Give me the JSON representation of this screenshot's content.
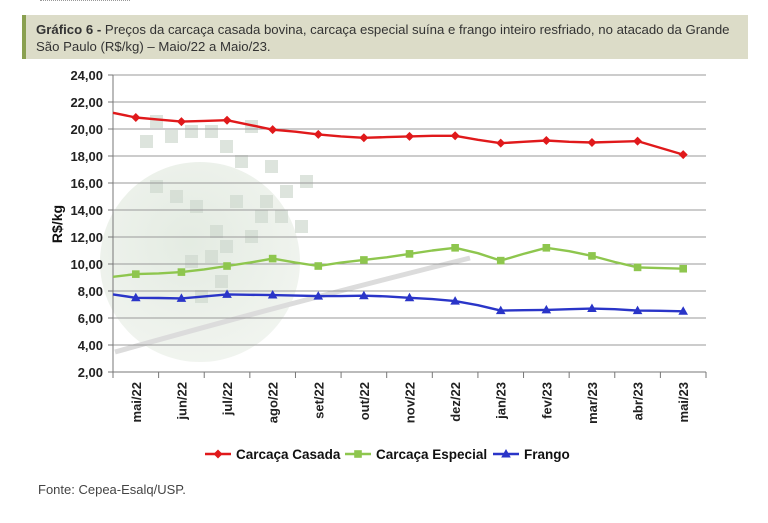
{
  "header": {
    "label": "Gráfico 6 -",
    "text": "Preços da carcaça casada bovina, carcaça especial suína e frango inteiro resfriado, no atacado da Grande São Paulo (R$/kg) – Maio/22 a Maio/23."
  },
  "source": "Fonte: Cepea-Esalq/USP.",
  "chart_data": {
    "type": "line",
    "ylabel": "R$/kg",
    "ylim": [
      2,
      24
    ],
    "y_ticks": [
      "2,00",
      "4,00",
      "6,00",
      "8,00",
      "10,00",
      "12,00",
      "14,00",
      "16,00",
      "18,00",
      "20,00",
      "22,00",
      "24,00"
    ],
    "categories": [
      "mai/22",
      "jun/22",
      "jul/22",
      "ago/22",
      "set/22",
      "out/22",
      "nov/22",
      "dez/22",
      "jan/23",
      "fev/23",
      "mar/23",
      "abr/23",
      "mai/23"
    ],
    "grid": true,
    "legend_position": "bottom",
    "series": [
      {
        "name": "Carcaça Casada",
        "color": "#e0191b",
        "marker": "diamond",
        "x": [
          -0.5,
          0,
          0.5,
          1,
          1.5,
          2,
          2.5,
          3,
          3.5,
          4,
          4.5,
          5,
          5.5,
          6,
          6.5,
          7,
          7.5,
          8,
          8.5,
          9,
          9.5,
          10,
          10.5,
          11,
          11.5,
          12
        ],
        "values": [
          21.2,
          20.85,
          20.7,
          20.55,
          20.6,
          20.65,
          20.3,
          19.95,
          19.8,
          19.6,
          19.45,
          19.35,
          19.4,
          19.45,
          19.5,
          19.5,
          19.2,
          18.95,
          19.05,
          19.15,
          19.05,
          19.0,
          19.05,
          19.1,
          18.6,
          18.1
        ]
      },
      {
        "name": "Carcaça Especial",
        "color": "#8ec64e",
        "marker": "square",
        "x": [
          -0.5,
          0,
          0.5,
          1,
          1.5,
          2,
          2.5,
          3,
          3.5,
          4,
          4.5,
          5,
          5.5,
          6,
          6.5,
          7,
          7.5,
          8,
          8.5,
          9,
          9.5,
          10,
          10.5,
          11,
          11.5,
          12
        ],
        "values": [
          9.05,
          9.25,
          9.3,
          9.4,
          9.6,
          9.85,
          10.1,
          10.4,
          10.1,
          9.85,
          10.1,
          10.3,
          10.5,
          10.75,
          11.0,
          11.2,
          10.8,
          10.25,
          10.75,
          11.2,
          10.95,
          10.6,
          10.15,
          9.75,
          9.7,
          9.65
        ]
      },
      {
        "name": "Frango",
        "color": "#2a35c8",
        "marker": "triangle",
        "x": [
          -0.5,
          0,
          0.5,
          1,
          1.5,
          2,
          2.5,
          3,
          3.5,
          4,
          4.5,
          5,
          5.5,
          6,
          6.5,
          7,
          7.5,
          8,
          8.5,
          9,
          9.5,
          10,
          10.5,
          11,
          11.5,
          12
        ],
        "values": [
          7.75,
          7.5,
          7.48,
          7.45,
          7.6,
          7.75,
          7.72,
          7.7,
          7.66,
          7.62,
          7.62,
          7.65,
          7.6,
          7.5,
          7.4,
          7.25,
          6.95,
          6.55,
          6.58,
          6.6,
          6.65,
          6.7,
          6.65,
          6.55,
          6.53,
          6.5
        ]
      }
    ]
  }
}
